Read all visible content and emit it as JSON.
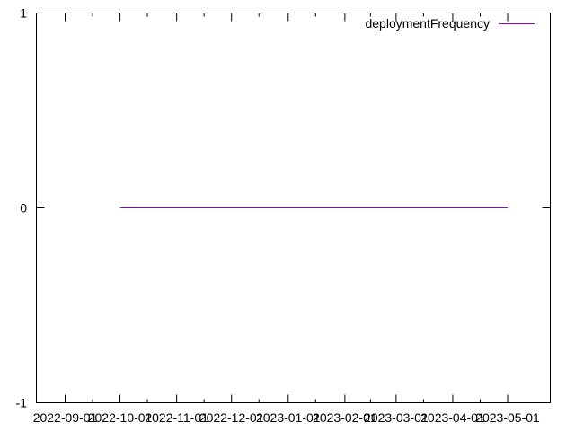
{
  "chart_data": {
    "type": "line",
    "title": "",
    "xlabel": "",
    "ylabel": "",
    "x_type": "date",
    "xlim": [
      "2022-09-01",
      "2023-05-01"
    ],
    "ylim": [
      -1,
      1
    ],
    "x_ticks": [
      "2022-09-01",
      "2022-10-01",
      "2022-11-01",
      "2022-12-01",
      "2023-01-01",
      "2023-02-01",
      "2023-03-01",
      "2023-04-01",
      "2023-05-01"
    ],
    "y_ticks": [
      -1,
      0,
      1
    ],
    "x_tick_labels": [
      "2022-09-01",
      "2022-10-01",
      "2022-11-01",
      "2022-12-01",
      "2023-01-01",
      "2023-02-01",
      "2023-03-01",
      "2023-04-01",
      "2023-05-01"
    ],
    "y_tick_labels": [
      "-1",
      "0",
      "1"
    ],
    "grid": false,
    "legend_position": "top-right",
    "series": [
      {
        "name": "deploymentFrequency",
        "color": "#9400d3",
        "x": [
          "2022-10-01",
          "2023-05-01"
        ],
        "values": [
          0,
          0
        ]
      }
    ]
  }
}
